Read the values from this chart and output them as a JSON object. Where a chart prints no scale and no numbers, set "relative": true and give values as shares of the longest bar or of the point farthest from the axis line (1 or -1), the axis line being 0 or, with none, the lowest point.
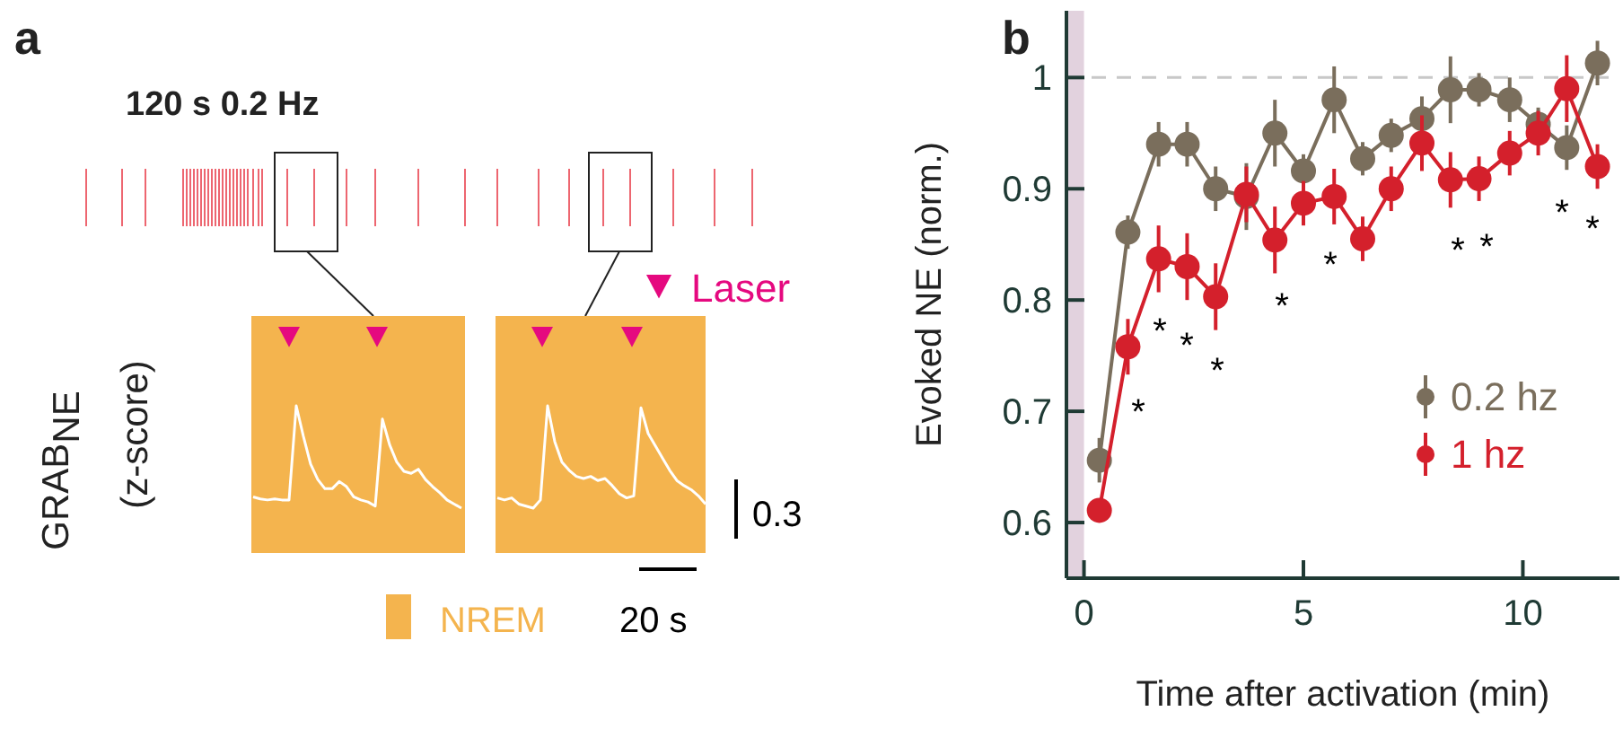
{
  "chart_data": [
    {
      "type": "other",
      "title": "a",
      "subtitle": "120 s 0.2 Hz",
      "ylabel": "GRAB$_{NE}$\n(z-score)",
      "annotations": [
        "Laser",
        "0.3",
        "20 s",
        "NREM"
      ]
    },
    {
      "type": "line",
      "relative": true,
      "categories": [
        null,
        null,
        null,
        null,
        null,
        null,
        null,
        null,
        null,
        null,
        null,
        null,
        null,
        null,
        null,
        null,
        null,
        null,
        null,
        null,
        null,
        null,
        null,
        null,
        null,
        null,
        null,
        null,
        null,
        null,
        null,
        null,
        null,
        null,
        null,
        null,
        null,
        null,
        null,
        null,
        null,
        null,
        null,
        null,
        null,
        null,
        null,
        null,
        null,
        null,
        null,
        null,
        null,
        null,
        null,
        null,
        null,
        null,
        null,
        null,
        null,
        null,
        null,
        null
      ],
      "series": [
        {
          "color": "#ffffff",
          "values": [
            0.11,
            0.09,
            0.08,
            0.09,
            0.08,
            0.08,
            1,
            0.7,
            0.43,
            0.28,
            0.19,
            0.19,
            0.26,
            0.21,
            0.11,
            0.08,
            0.06,
            0.02,
            0.87,
            0.62,
            0.45,
            0.36,
            0.34,
            0.38,
            0.28,
            0.21,
            0.15,
            0.08,
            0.04,
            0,
            null,
            null,
            null,
            null,
            null,
            null,
            null,
            null,
            null,
            null,
            null,
            null,
            null,
            null,
            null,
            null,
            null,
            null,
            null,
            null,
            null,
            null,
            null,
            null,
            null,
            null,
            null,
            null,
            null,
            null,
            null,
            null,
            null,
            null
          ]
        },
        {
          "color": "#ffffff",
          "values": [
            null,
            null,
            null,
            null,
            null,
            null,
            null,
            null,
            null,
            null,
            null,
            null,
            null,
            null,
            null,
            null,
            null,
            null,
            null,
            null,
            null,
            null,
            null,
            null,
            null,
            null,
            null,
            null,
            null,
            null,
            null,
            null,
            null,
            null,
            0.1,
            0.08,
            0.1,
            0.04,
            0.02,
            0,
            0.08,
            1,
            0.65,
            0.45,
            0.37,
            0.31,
            0.29,
            0.31,
            0.27,
            0.29,
            0.22,
            0.14,
            0.1,
            0.12,
            0.98,
            0.73,
            0.61,
            0.49,
            0.37,
            0.27,
            0.22,
            0.18,
            0.12,
            0.04
          ]
        }
      ]
    },
    {
      "type": "line",
      "title": "b",
      "xlabel": "Time after activation (min)",
      "ylabel": "Evoked NE (norm.)",
      "xlim": [
        -0.4,
        12.2
      ],
      "xticks": [
        0,
        5,
        10
      ],
      "ylim": [
        0.55,
        1.06
      ],
      "yticks": [
        0.6,
        0.7,
        0.8,
        0.9,
        {
          "value": 1,
          "label": "1"
        }
      ],
      "marker": "circle",
      "legend": "bottom right",
      "x": [
        0.35,
        1.0,
        1.7,
        2.35,
        3.0,
        3.7,
        4.35,
        5.0,
        5.7,
        6.35,
        7.0,
        7.7,
        8.35,
        9.0,
        9.7,
        10.35,
        11.0,
        11.7
      ],
      "series": [
        {
          "name": "0.2 hz",
          "color": "#7a6e5c",
          "values": [
            0.656,
            0.861,
            0.94,
            0.94,
            0.9,
            0.893,
            0.95,
            0.916,
            0.98,
            0.927,
            0.948,
            0.963,
            0.989,
            0.989,
            0.98,
            0.958,
            0.937,
            1.013
          ],
          "errors": [
            0.02,
            0.015,
            0.02,
            0.02,
            0.02,
            0.03,
            0.03,
            0.015,
            0.03,
            0.015,
            0.015,
            0.02,
            0.03,
            0.015,
            0.02,
            0.015,
            0.02,
            0.02
          ]
        },
        {
          "name": "1 hz",
          "color": "#d4202c",
          "values": [
            0.611,
            0.758,
            0.837,
            0.83,
            0.803,
            0.895,
            0.854,
            0.887,
            0.893,
            0.855,
            0.9,
            0.941,
            0.908,
            0.909,
            0.932,
            0.95,
            0.99,
            0.92
          ],
          "errors": [
            0.01,
            0.025,
            0.03,
            0.03,
            0.03,
            0.025,
            0.03,
            0.02,
            0.025,
            0.02,
            0.02,
            0.025,
            0.025,
            0.02,
            0.02,
            0.02,
            0.03,
            0.02
          ]
        }
      ],
      "ref_lines": [
        {
          "axis": "y",
          "value": 1,
          "color": "#c8c8c8",
          "line_style": "dashed"
        }
      ],
      "bands": [
        {
          "axis": "x",
          "from": -0.4,
          "to": 0,
          "color": "#e2d2de"
        }
      ],
      "annotations": [
        "*",
        "*",
        "*",
        "*",
        "*",
        "*",
        "*",
        "*",
        "*",
        "*"
      ]
    }
  ]
}
